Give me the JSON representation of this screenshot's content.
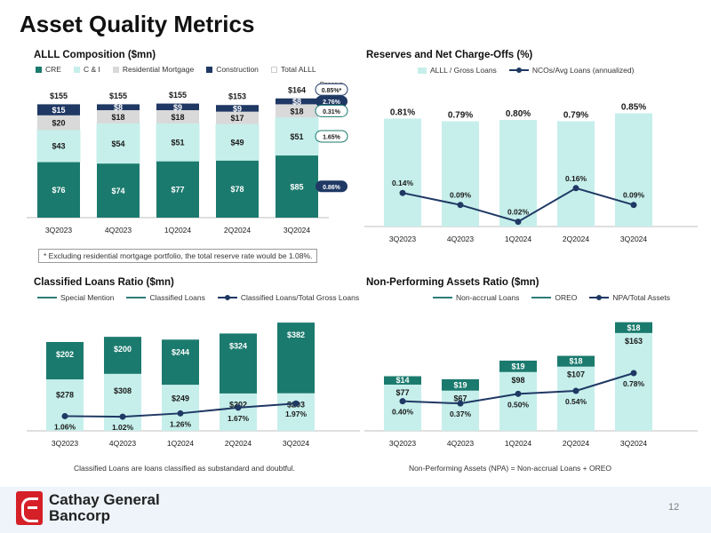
{
  "page": {
    "title": "Asset Quality Metrics",
    "company_line1": "Cathay General",
    "company_line2": "Bancorp",
    "page_number": "12"
  },
  "colors": {
    "cre": "#1b7a6e",
    "ci": "#c6efeb",
    "residential": "#d9d9d9",
    "construction": "#1f3864",
    "total": "#ffffff",
    "light": "#c6efeb",
    "dark": "#1b7a6e",
    "line": "#1f3864"
  },
  "chart_data": [
    {
      "id": "allll",
      "type": "bar",
      "stacked": true,
      "title": "ALLL Composition ($mn)",
      "categories": [
        "3Q2023",
        "4Q2023",
        "1Q2024",
        "2Q2024",
        "3Q2024"
      ],
      "series": [
        {
          "name": "CRE",
          "values": [
            76,
            74,
            77,
            78,
            85
          ],
          "labels": [
            "$76",
            "$74",
            "$77",
            "$78",
            "$85"
          ]
        },
        {
          "name": "C & I",
          "values": [
            43,
            54,
            51,
            49,
            51
          ],
          "labels": [
            "$43",
            "$54",
            "$51",
            "$49",
            "$51"
          ]
        },
        {
          "name": "Residential Mortgage",
          "values": [
            20,
            18,
            18,
            17,
            18
          ],
          "labels": [
            "$20",
            "$18",
            "$18",
            "$17",
            "$18"
          ]
        },
        {
          "name": "Construction",
          "values": [
            15,
            8,
            9,
            9,
            8
          ],
          "labels": [
            "$15",
            "$8",
            "$9",
            "$9",
            "$8"
          ]
        }
      ],
      "totals_series_name": "Total ALLL",
      "totals": [
        155,
        155,
        155,
        153,
        164
      ],
      "total_labels": [
        "$155",
        "$155",
        "$155",
        "$153",
        "$164"
      ],
      "reserve_rate_header": "Reserve Rate",
      "reserve_rates": [
        {
          "series": "Construction",
          "label": "2.76%"
        },
        {
          "series": "Residential Mortgage",
          "label": "0.31%"
        },
        {
          "series": "C & I",
          "label": "1.65%"
        },
        {
          "series": "CRE",
          "label": "0.86%"
        }
      ],
      "total_rate_label": "0.85%*",
      "footnote": "* Excluding residential mortgage portfolio, the total reserve rate would be 1.08%.",
      "ylim": [
        0,
        175
      ]
    },
    {
      "id": "reserves",
      "type": "bar",
      "title": "Reserves and Net Charge-Offs (%)",
      "categories": [
        "3Q2023",
        "4Q2023",
        "1Q2024",
        "2Q2024",
        "3Q2024"
      ],
      "series": [
        {
          "name": "ALLL / Gross Loans",
          "type": "bar",
          "values": [
            0.81,
            0.79,
            0.8,
            0.79,
            0.85
          ],
          "labels": [
            "0.81%",
            "0.79%",
            "0.80%",
            "0.79%",
            "0.85%"
          ]
        },
        {
          "name": "NCOs/Avg Loans (annualized)",
          "type": "line",
          "values": [
            0.14,
            0.09,
            0.02,
            0.16,
            0.09
          ],
          "labels": [
            "0.14%",
            "0.09%",
            "0.02%",
            "0.16%",
            "0.09%"
          ]
        }
      ],
      "bar_ylim": [
        0,
        0.9
      ],
      "line_ylim": [
        0,
        0.5
      ]
    },
    {
      "id": "classified",
      "type": "bar",
      "stacked": true,
      "title": "Classified Loans Ratio ($mn)",
      "categories": [
        "3Q2023",
        "4Q2023",
        "1Q2024",
        "2Q2024",
        "3Q2024"
      ],
      "series": [
        {
          "name": "Special Mention",
          "values": [
            278,
            308,
            249,
            202,
            203
          ],
          "labels": [
            "$278",
            "$308",
            "$249",
            "$202",
            "$203"
          ]
        },
        {
          "name": "Classified Loans",
          "values": [
            202,
            200,
            244,
            324,
            382
          ],
          "labels": [
            "$202",
            "$200",
            "$244",
            "$324",
            "$382"
          ]
        },
        {
          "name": "Classified Loans/Total Gross Loans",
          "type": "line",
          "values": [
            1.06,
            1.02,
            1.26,
            1.67,
            1.97
          ],
          "labels": [
            "1.06%",
            "1.02%",
            "1.26%",
            "1.67%",
            "1.97%"
          ]
        }
      ],
      "ylim": [
        0,
        600
      ],
      "line_ylim": [
        0,
        8
      ],
      "note": "Classified Loans are loans classified as substandard and doubtful."
    },
    {
      "id": "npa",
      "type": "bar",
      "stacked": true,
      "title": "Non-Performing Assets Ratio ($mn)",
      "categories": [
        "3Q2023",
        "4Q2023",
        "1Q2024",
        "2Q2024",
        "3Q2024"
      ],
      "series": [
        {
          "name": "Non-accrual Loans",
          "values": [
            77,
            67,
            98,
            107,
            163
          ],
          "labels": [
            "$77",
            "$67",
            "$98",
            "$107",
            "$163"
          ]
        },
        {
          "name": "OREO",
          "values": [
            14,
            19,
            19,
            18,
            18
          ],
          "labels": [
            "$14",
            "$19",
            "$19",
            "$18",
            "$18"
          ]
        },
        {
          "name": "NPA/Total Assets",
          "type": "line",
          "values": [
            0.4,
            0.37,
            0.5,
            0.54,
            0.78
          ],
          "labels": [
            "0.40%",
            "0.37%",
            "0.50%",
            "0.54%",
            "0.78%"
          ]
        }
      ],
      "ylim": [
        0,
        185
      ],
      "line_ylim": [
        0,
        1.5
      ],
      "note": "Non-Performing Assets (NPA) = Non-accrual Loans + OREO"
    }
  ]
}
